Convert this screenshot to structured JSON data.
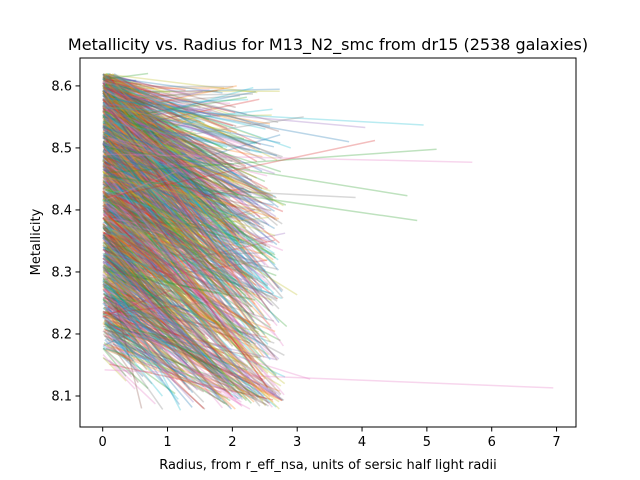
{
  "chart_data": {
    "type": "line",
    "title": "Metallicity vs. Radius for M13_N2_smc from dr15 (2538 galaxies)",
    "xlabel": "Radius, from r_eff_nsa, units of sersic half light radii",
    "ylabel": "Metallicity",
    "xlim": [
      -0.35,
      7.3
    ],
    "ylim": [
      8.05,
      8.645
    ],
    "xticks": [
      0,
      1,
      2,
      3,
      4,
      5,
      6,
      7
    ],
    "yticks": [
      8.1,
      8.2,
      8.3,
      8.4,
      8.5,
      8.6
    ],
    "xtick_labels": [
      "0",
      "1",
      "2",
      "3",
      "4",
      "5",
      "6",
      "7"
    ],
    "ytick_labels": [
      "8.1",
      "8.2",
      "8.3",
      "8.4",
      "8.5",
      "8.6"
    ],
    "grid": false,
    "legend": "none",
    "series_count": 2538,
    "line_alpha": 0.3,
    "palette": [
      "#1f77b4",
      "#ff7f0e",
      "#2ca02c",
      "#d62728",
      "#9467bd",
      "#8c564b",
      "#e377c2",
      "#7f7f7f",
      "#bcbd22",
      "#17becf"
    ],
    "series_sample": [
      {
        "x": [
          0.03,
          6.95
        ],
        "y": [
          8.142,
          8.113
        ],
        "color": "#e377c2"
      },
      {
        "x": [
          0.05,
          5.7
        ],
        "y": [
          8.49,
          8.477
        ],
        "color": "#e377c2"
      },
      {
        "x": [
          0.05,
          5.15
        ],
        "y": [
          8.46,
          8.498
        ],
        "color": "#2ca02c"
      },
      {
        "x": [
          0.05,
          4.95
        ],
        "y": [
          8.565,
          8.537
        ],
        "color": "#17becf"
      },
      {
        "x": [
          0.05,
          4.85
        ],
        "y": [
          8.455,
          8.383
        ],
        "color": "#2ca02c"
      },
      {
        "x": [
          0.1,
          4.7
        ],
        "y": [
          8.5,
          8.423
        ],
        "color": "#2ca02c"
      },
      {
        "x": [
          0.05,
          4.2
        ],
        "y": [
          8.42,
          8.512
        ],
        "color": "#d62728"
      },
      {
        "x": [
          0.1,
          4.05
        ],
        "y": [
          8.57,
          8.533
        ],
        "color": "#9467bd"
      },
      {
        "x": [
          0.05,
          3.9
        ],
        "y": [
          8.44,
          8.42
        ],
        "color": "#7f7f7f"
      },
      {
        "x": [
          0.1,
          3.8
        ],
        "y": [
          8.58,
          8.51
        ],
        "color": "#1f77b4"
      },
      {
        "x": [
          2.1,
          3.2
        ],
        "y": [
          8.163,
          8.127
        ],
        "color": "#e377c2"
      },
      {
        "x": [
          0.05,
          3.1
        ],
        "y": [
          8.5,
          8.55
        ],
        "color": "#7f7f7f"
      },
      {
        "x": [
          0.1,
          3.0
        ],
        "y": [
          8.45,
          8.263
        ],
        "color": "#bcbd22"
      },
      {
        "x": [
          0.15,
          2.9
        ],
        "y": [
          8.6,
          8.5
        ],
        "color": "#17becf"
      },
      {
        "x": [
          0.1,
          1.2
        ],
        "y": [
          8.3,
          8.077
        ],
        "color": "#17becf"
      },
      {
        "x": [
          0.6,
          1.4
        ],
        "y": [
          8.18,
          8.09
        ],
        "color": "#9467bd"
      },
      {
        "x": [
          0.2,
          0.6
        ],
        "y": [
          8.25,
          8.08
        ],
        "color": "#8c564b"
      },
      {
        "x": [
          0.1,
          0.7
        ],
        "y": [
          8.612,
          8.62
        ],
        "color": "#2ca02c"
      }
    ]
  }
}
